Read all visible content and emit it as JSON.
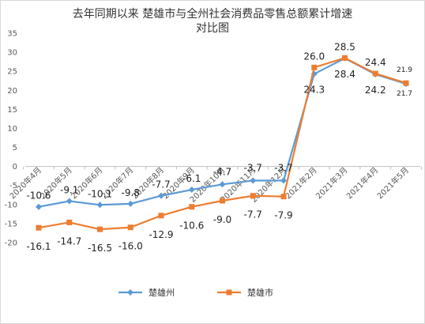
{
  "chart_data": {
    "type": "line",
    "title": "去年同期以来 楚雄市与全州社会消费品零售总额累计增速",
    "subtitle": "对比图",
    "categories": [
      "2020年4月",
      "2020年5月",
      "2020年6月",
      "2020年7月",
      "2020年8月",
      "2020年9月",
      "2020年10月",
      "2020年11月",
      "2020年12月",
      "2021年2月",
      "2021年3月",
      "2021年4月",
      "2021年5月"
    ],
    "series": [
      {
        "name": "楚雄州",
        "color": "#5b9bd5",
        "marker": "diamond",
        "values": [
          -10.6,
          -9.1,
          -10.1,
          -9.8,
          -7.7,
          -6.1,
          -4.7,
          -3.7,
          -3.7,
          24.3,
          28.4,
          24.2,
          21.7
        ],
        "labels": [
          "-10.6",
          "-9.1",
          "-10.1",
          "-9.8",
          "-7.7",
          "-6.1",
          "-4.7",
          "-3.7",
          "-3.7",
          "24.3",
          "28.4",
          "24.2",
          "21.7"
        ]
      },
      {
        "name": "楚雄市",
        "color": "#ed7d31",
        "marker": "square",
        "values": [
          -16.1,
          -14.7,
          -16.5,
          -16.0,
          -12.9,
          -10.6,
          -9.0,
          -7.7,
          -7.9,
          26.0,
          28.5,
          24.4,
          21.9
        ],
        "labels": [
          "-16.1",
          "-14.7",
          "-16.5",
          "-16.0",
          "-12.9",
          "-10.6",
          "-9.0",
          "-7.7",
          "-7.9",
          "26.0",
          "28.5",
          "24.4",
          "21.9"
        ]
      }
    ],
    "ylim": [
      -20,
      35
    ],
    "yticks": [
      -20,
      -15,
      -10,
      -5,
      0,
      5,
      10,
      15,
      20,
      25,
      30,
      35
    ],
    "xlabel": "",
    "ylabel": "",
    "grid": false,
    "legend": "bottom"
  }
}
